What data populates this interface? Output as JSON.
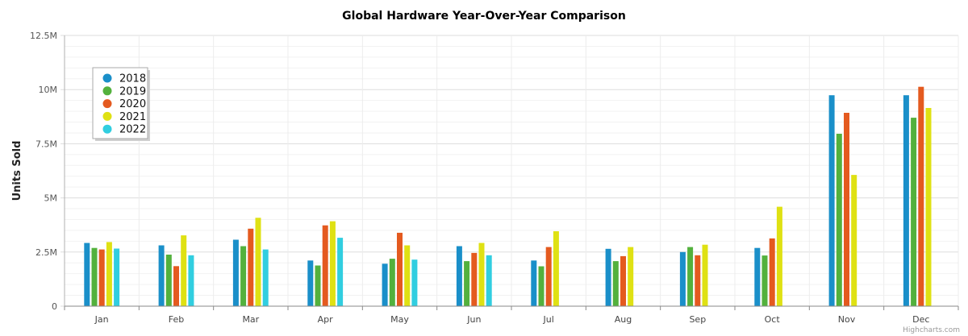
{
  "chart_data": {
    "type": "bar",
    "title": "Global Hardware Year-Over-Year Comparison",
    "xlabel": "",
    "ylabel": "Units Sold",
    "ylim": [
      0,
      12500000
    ],
    "yticks": [
      0,
      2500000,
      5000000,
      7500000,
      10000000,
      12500000
    ],
    "ytick_labels": [
      "0",
      "2.5M",
      "5M",
      "7.5M",
      "10M",
      "12.5M"
    ],
    "grid": true,
    "legend_position": "top-left",
    "categories": [
      "Jan",
      "Feb",
      "Mar",
      "Apr",
      "May",
      "Jun",
      "Jul",
      "Aug",
      "Sep",
      "Oct",
      "Nov",
      "Dec"
    ],
    "series": [
      {
        "name": "2018",
        "color": "#1a8fc9",
        "values": [
          2920000,
          2810000,
          3070000,
          2110000,
          1960000,
          2770000,
          2110000,
          2650000,
          2500000,
          2690000,
          9740000,
          9740000
        ]
      },
      {
        "name": "2019",
        "color": "#53b13d",
        "values": [
          2690000,
          2380000,
          2770000,
          1880000,
          2190000,
          2080000,
          1840000,
          2080000,
          2730000,
          2340000,
          7960000,
          8700000
        ]
      },
      {
        "name": "2020",
        "color": "#e45a1f",
        "values": [
          2620000,
          1850000,
          3580000,
          3730000,
          3390000,
          2460000,
          2730000,
          2310000,
          2350000,
          3130000,
          8930000,
          10130000
        ]
      },
      {
        "name": "2021",
        "color": "#dfe113",
        "values": [
          2960000,
          3270000,
          4080000,
          3920000,
          2810000,
          2920000,
          3460000,
          2730000,
          2840000,
          4590000,
          6060000,
          9150000
        ]
      },
      {
        "name": "2022",
        "color": "#31cee0",
        "values": [
          2660000,
          2350000,
          2620000,
          3160000,
          2150000,
          2350000,
          null,
          null,
          null,
          null,
          null,
          null
        ]
      }
    ]
  },
  "credits": "Highcharts.com"
}
